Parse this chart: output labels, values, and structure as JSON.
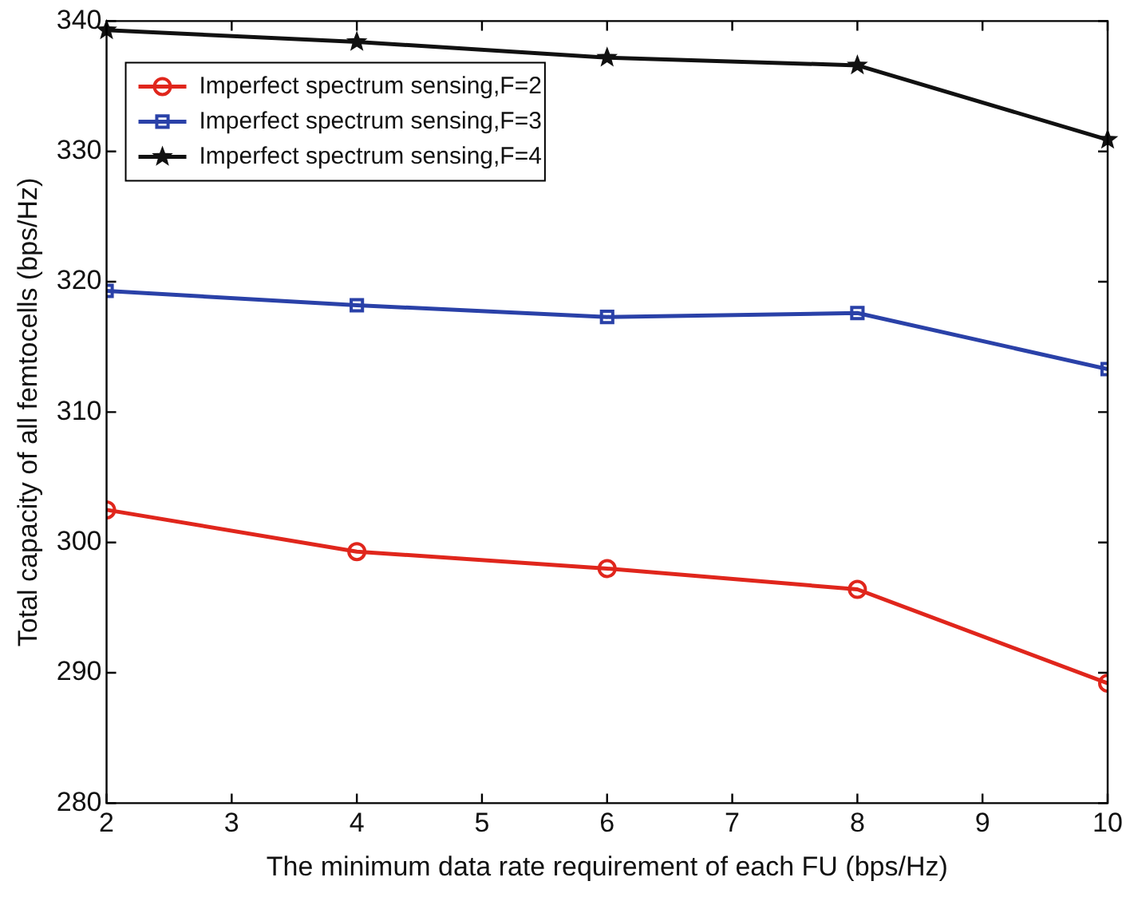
{
  "chart_data": {
    "type": "line",
    "xlabel": "The minimum data rate requirement of each FU (bps/Hz)",
    "ylabel": "Total capacity of all femtocells (bps/Hz)",
    "x": [
      2,
      4,
      6,
      8,
      10
    ],
    "series": [
      {
        "name": "Imperfect spectrum sensing,F=2",
        "color": "#e0261c",
        "marker": "circle",
        "values": [
          302.5,
          299.3,
          298.0,
          296.4,
          289.2
        ]
      },
      {
        "name": "Imperfect spectrum sensing,F=3",
        "color": "#2a41a8",
        "marker": "square",
        "values": [
          319.3,
          318.2,
          317.3,
          317.6,
          313.3
        ]
      },
      {
        "name": "Imperfect spectrum sensing,F=4",
        "color": "#111111",
        "marker": "star",
        "values": [
          339.3,
          338.4,
          337.2,
          336.6,
          330.9
        ]
      }
    ],
    "xlim": [
      2,
      10
    ],
    "xticks": [
      2,
      3,
      4,
      5,
      6,
      7,
      8,
      9,
      10
    ],
    "ylim": [
      280,
      340
    ],
    "yticks": [
      280,
      290,
      300,
      310,
      320,
      330,
      340
    ],
    "legend": "top left",
    "grid": false,
    "line_style": "solid"
  }
}
